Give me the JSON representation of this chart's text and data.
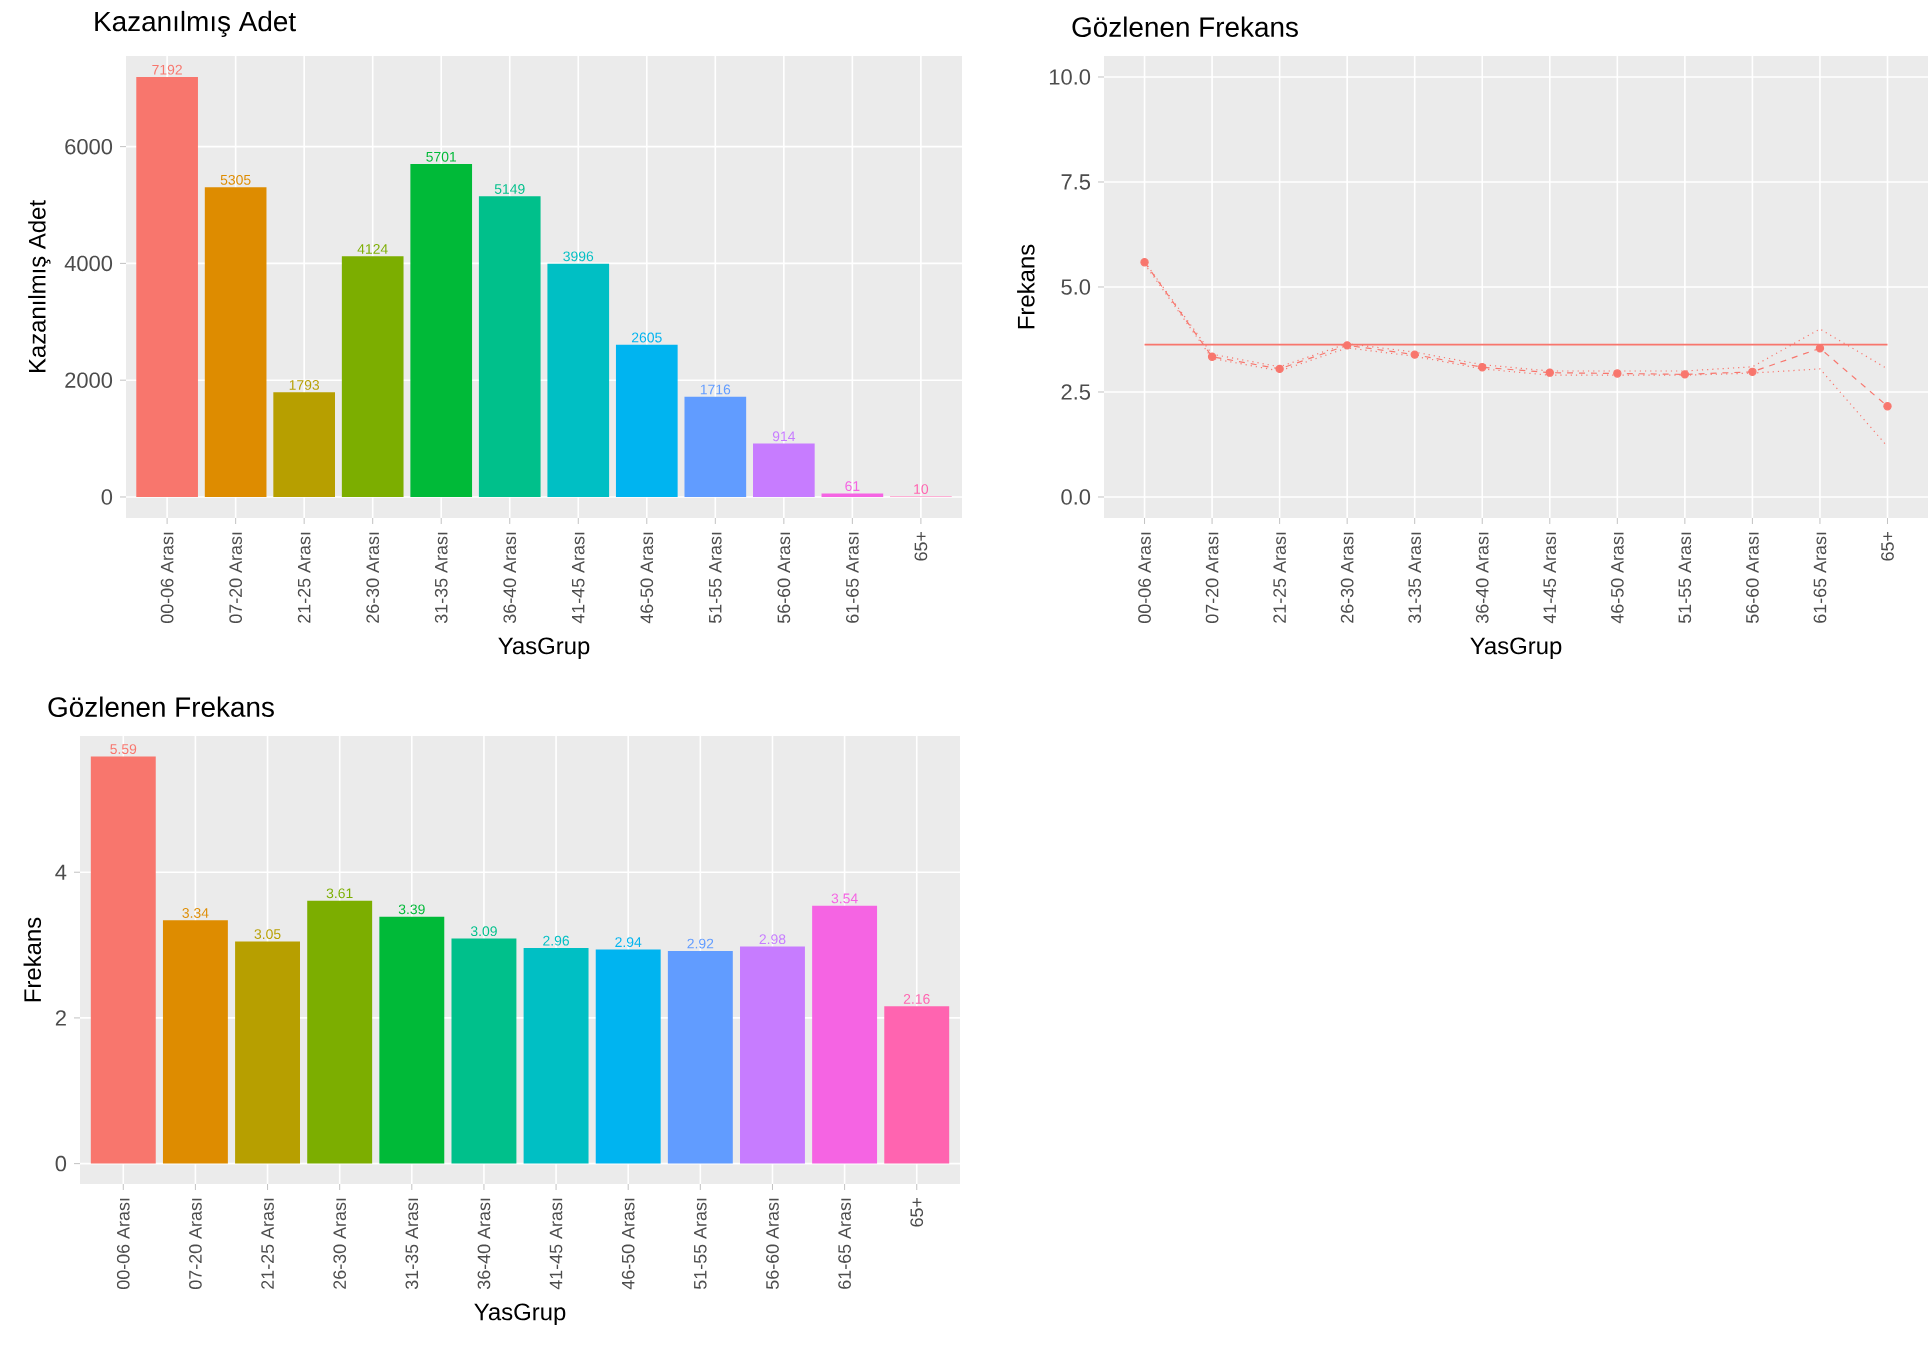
{
  "chart_data": [
    {
      "type": "bar",
      "title": "Kazanılmış Adet",
      "xlabel": "YasGrup",
      "ylabel": "Kazanılmış Adet",
      "categories": [
        "00-06 Arası",
        "07-20 Arası",
        "21-25 Arası",
        "26-30 Arası",
        "31-35 Arası",
        "36-40 Arası",
        "41-45 Arası",
        "46-50 Arası",
        "51-55 Arası",
        "56-60 Arası",
        "61-65 Arası",
        "65+"
      ],
      "values": [
        7192,
        5305,
        1793,
        4124,
        5701,
        5149,
        3996,
        2605,
        1716,
        914,
        61,
        10
      ],
      "colors": [
        "#F8766D",
        "#DE8C00",
        "#B79F00",
        "#7CAE00",
        "#00BA38",
        "#00C08B",
        "#00BFC4",
        "#00B4F0",
        "#619CFF",
        "#C77CFF",
        "#F564E3",
        "#FF64B0"
      ],
      "ylim": [
        -360,
        7552
      ],
      "yticks": [
        0,
        2000,
        4000,
        6000
      ],
      "grid": true,
      "data_labels": true
    },
    {
      "type": "line",
      "title": "Gözlenen Frekans",
      "xlabel": "YasGrup",
      "ylabel": "Frekans",
      "categories": [
        "00-06 Arası",
        "07-20 Arası",
        "21-25 Arası",
        "26-30 Arası",
        "31-35 Arası",
        "36-40 Arası",
        "41-45 Arası",
        "46-50 Arası",
        "51-55 Arası",
        "56-60 Arası",
        "61-65 Arası",
        "65+"
      ],
      "series": [
        {
          "color": "#F8766D",
          "marker": "circle",
          "line_style": "dashed",
          "values": [
            5.59,
            3.34,
            3.05,
            3.61,
            3.39,
            3.09,
            2.96,
            2.94,
            2.92,
            2.98,
            3.54,
            2.16
          ]
        },
        {
          "color": "#F8766D",
          "marker": "none",
          "line_style": "dotted",
          "values": [
            5.6,
            3.4,
            3.1,
            3.65,
            3.45,
            3.15,
            3.0,
            3.0,
            3.0,
            3.1,
            4.0,
            3.05
          ]
        },
        {
          "color": "#F8766D",
          "marker": "none",
          "line_style": "dotted",
          "values": [
            5.55,
            3.3,
            3.0,
            3.55,
            3.35,
            3.05,
            2.9,
            2.9,
            2.9,
            2.95,
            3.05,
            1.2
          ]
        }
      ],
      "ref_lines": [
        {
          "axis": "y",
          "value": 3.63,
          "color": "#F8766D"
        }
      ],
      "ylim": [
        -0.5,
        10.5
      ],
      "yticks": [
        {
          "value": 0,
          "label": "0.0"
        },
        {
          "value": 2.5,
          "label": "2.5"
        },
        {
          "value": 5,
          "label": "5.0"
        },
        {
          "value": 7.5,
          "label": "7.5"
        },
        {
          "value": 10,
          "label": "10.0"
        }
      ],
      "grid": true
    },
    {
      "type": "bar",
      "title": "Gözlenen Frekans",
      "xlabel": "YasGrup",
      "ylabel": "Frekans",
      "categories": [
        "00-06 Arası",
        "07-20 Arası",
        "21-25 Arası",
        "26-30 Arası",
        "31-35 Arası",
        "36-40 Arası",
        "41-45 Arası",
        "46-50 Arası",
        "51-55 Arası",
        "56-60 Arası",
        "61-65 Arası",
        "65+"
      ],
      "values": [
        5.59,
        3.34,
        3.05,
        3.61,
        3.39,
        3.09,
        2.96,
        2.94,
        2.92,
        2.98,
        3.54,
        2.16
      ],
      "colors": [
        "#F8766D",
        "#DE8C00",
        "#B79F00",
        "#7CAE00",
        "#00BA38",
        "#00C08B",
        "#00BFC4",
        "#00B4F0",
        "#619CFF",
        "#C77CFF",
        "#F564E3",
        "#FF64B0"
      ],
      "ylim": [
        -0.28,
        5.87
      ],
      "yticks": [
        0,
        2,
        4
      ],
      "grid": true,
      "data_labels": true
    }
  ]
}
